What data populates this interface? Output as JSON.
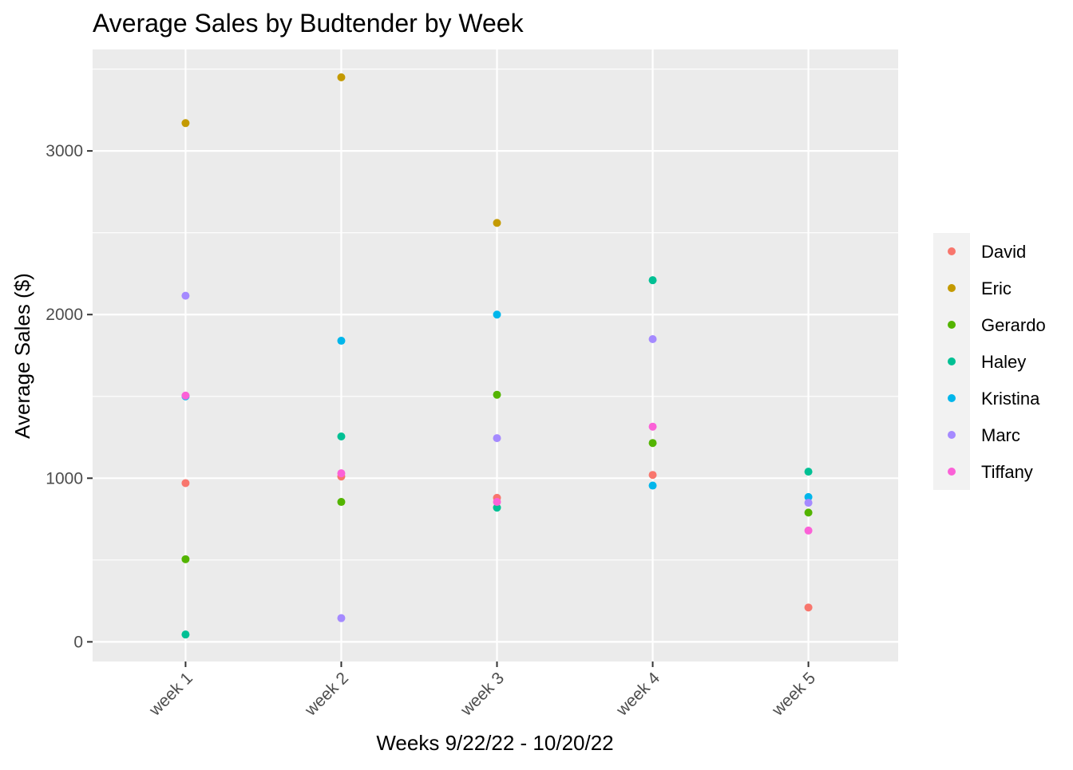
{
  "chart_data": {
    "type": "scatter",
    "title": "Average Sales by Budtender by Week",
    "xlabel": "Weeks 9/22/22 - 10/20/22",
    "ylabel": "Average Sales ($)",
    "categories": [
      "week 1",
      "week 2",
      "week 3",
      "week 4",
      "week 5"
    ],
    "ylim": [
      -120,
      3620
    ],
    "yticks": [
      0,
      1000,
      2000,
      3000
    ],
    "grid": true,
    "legend_position": "right",
    "series": [
      {
        "name": "David",
        "color": "#F8766D",
        "values": [
          970,
          1010,
          880,
          1020,
          210
        ]
      },
      {
        "name": "Eric",
        "color": "#C49A00",
        "values": [
          3170,
          3450,
          2560,
          null,
          null
        ]
      },
      {
        "name": "Gerardo",
        "color": "#53B400",
        "values": [
          505,
          855,
          1510,
          1215,
          790
        ]
      },
      {
        "name": "Haley",
        "color": "#00C094",
        "values": [
          45,
          1255,
          820,
          2210,
          1040
        ]
      },
      {
        "name": "Kristina",
        "color": "#00B6EB",
        "values": [
          1500,
          1840,
          2000,
          955,
          885
        ]
      },
      {
        "name": "Marc",
        "color": "#A58AFF",
        "values": [
          2115,
          145,
          1245,
          1850,
          850
        ]
      },
      {
        "name": "Tiffany",
        "color": "#FB61D7",
        "values": [
          1505,
          1030,
          855,
          1315,
          680
        ]
      }
    ]
  }
}
